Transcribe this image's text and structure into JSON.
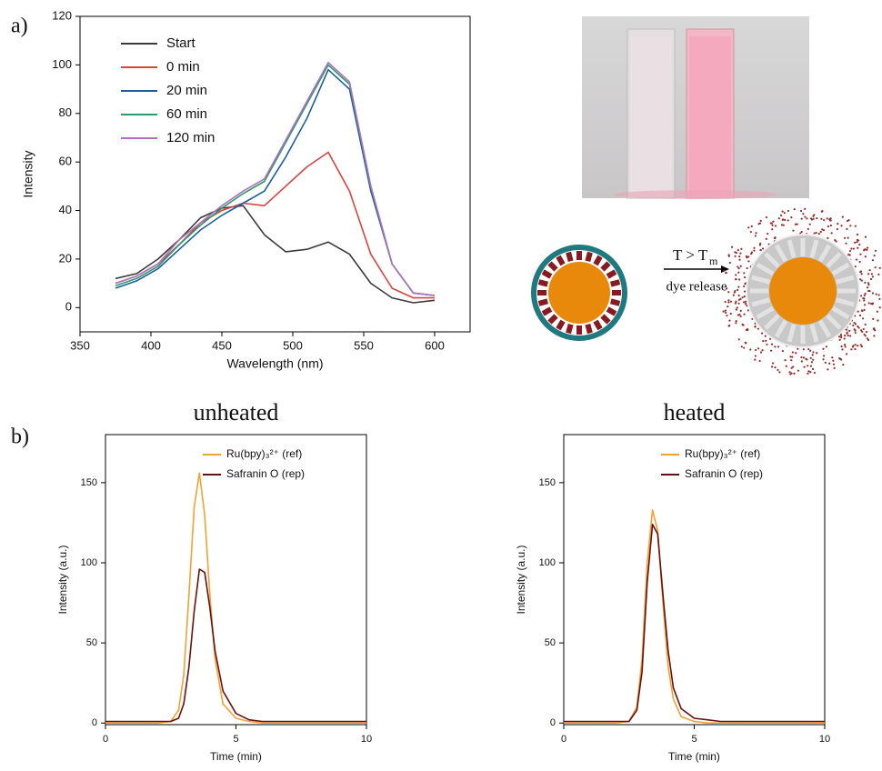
{
  "panel_labels": [
    "a)",
    "b)"
  ],
  "schematic": {
    "condition_main": "T > T",
    "condition_sub": "m",
    "process": "dye release"
  },
  "chart_data": [
    {
      "type": "line",
      "x_label": "Wavelength (nm)",
      "y_label": "Intensity",
      "legend": "upper left",
      "grid": false,
      "x": [
        375,
        390,
        405,
        420,
        435,
        450,
        465,
        480,
        495,
        510,
        525,
        540,
        555,
        570,
        585,
        600
      ],
      "xlim": [
        350,
        625
      ],
      "xticks": [
        350,
        400,
        450,
        500,
        550,
        600
      ],
      "ylim": [
        -10,
        120
      ],
      "yticks": [
        0,
        20,
        40,
        60,
        80,
        100,
        120
      ],
      "series": [
        {
          "name": "Start",
          "color": "#3a3a3a",
          "values": [
            12,
            14,
            20,
            28,
            37,
            41,
            42,
            30,
            23,
            24,
            27,
            22,
            10,
            4,
            2,
            3
          ]
        },
        {
          "name": "0 min",
          "color": "#d9443f",
          "values": [
            10,
            13,
            18,
            26,
            35,
            40,
            43,
            42,
            50,
            58,
            64,
            48,
            22,
            8,
            4,
            4
          ]
        },
        {
          "name": "20 min",
          "color": "#1f5f9e",
          "values": [
            8,
            11,
            16,
            24,
            32,
            38,
            43,
            48,
            62,
            78,
            98,
            90,
            48,
            18,
            6,
            5
          ]
        },
        {
          "name": "60 min",
          "color": "#2e9a6a",
          "values": [
            9,
            12,
            17,
            26,
            34,
            41,
            47,
            52,
            68,
            84,
            100,
            92,
            50,
            18,
            6,
            5
          ]
        },
        {
          "name": "120 min",
          "color": "#b070c0",
          "values": [
            10,
            13,
            18,
            28,
            35,
            42,
            48,
            53,
            69,
            85,
            101,
            93,
            50,
            18,
            6,
            5
          ]
        }
      ]
    },
    {
      "type": "line",
      "title": "unheated",
      "x_label": "Time (min)",
      "y_label": "Intensity (a.u.)",
      "legend": "upper right",
      "grid": false,
      "x": [
        0,
        1,
        2,
        2.5,
        2.8,
        3,
        3.2,
        3.4,
        3.6,
        3.8,
        4,
        4.2,
        4.5,
        5,
        5.5,
        6,
        7,
        10
      ],
      "xlim": [
        0,
        10
      ],
      "xticks": [
        0,
        5,
        10
      ],
      "ylim": [
        -1,
        180
      ],
      "yticks": [
        0,
        50,
        100,
        150
      ],
      "series": [
        {
          "name": "Ru(bpy)₃²⁺ (ref)",
          "color": "#f5a033",
          "values": [
            0,
            0,
            0,
            1,
            8,
            30,
            80,
            135,
            156,
            130,
            80,
            40,
            12,
            3,
            1,
            0,
            0,
            0
          ]
        },
        {
          "name": "Safranin O (rep)",
          "color": "#6b0f0f",
          "values": [
            1,
            1,
            1,
            1,
            3,
            12,
            35,
            70,
            96,
            94,
            72,
            45,
            20,
            6,
            2,
            1,
            1,
            1
          ]
        }
      ]
    },
    {
      "type": "line",
      "title": "heated",
      "x_label": "Time (min)",
      "y_label": "Intensity (a.u.)",
      "legend": "upper right",
      "grid": false,
      "x": [
        0,
        1,
        2,
        2.5,
        2.8,
        3,
        3.2,
        3.4,
        3.6,
        3.8,
        4,
        4.2,
        4.5,
        5,
        5.5,
        6,
        7,
        10
      ],
      "xlim": [
        0,
        10
      ],
      "xticks": [
        0,
        5,
        10
      ],
      "ylim": [
        -1,
        180
      ],
      "yticks": [
        0,
        50,
        100,
        150
      ],
      "series": [
        {
          "name": "Ru(bpy)₃²⁺ (ref)",
          "color": "#f5a033",
          "values": [
            0,
            0,
            0,
            1,
            10,
            40,
            100,
            133,
            120,
            75,
            35,
            15,
            4,
            1,
            0,
            0,
            0,
            0
          ]
        },
        {
          "name": "Safranin O (rep)",
          "color": "#6b0f0f",
          "values": [
            1,
            1,
            1,
            1,
            8,
            32,
            88,
            124,
            118,
            80,
            45,
            22,
            9,
            3,
            2,
            1,
            1,
            1
          ]
        }
      ]
    }
  ]
}
